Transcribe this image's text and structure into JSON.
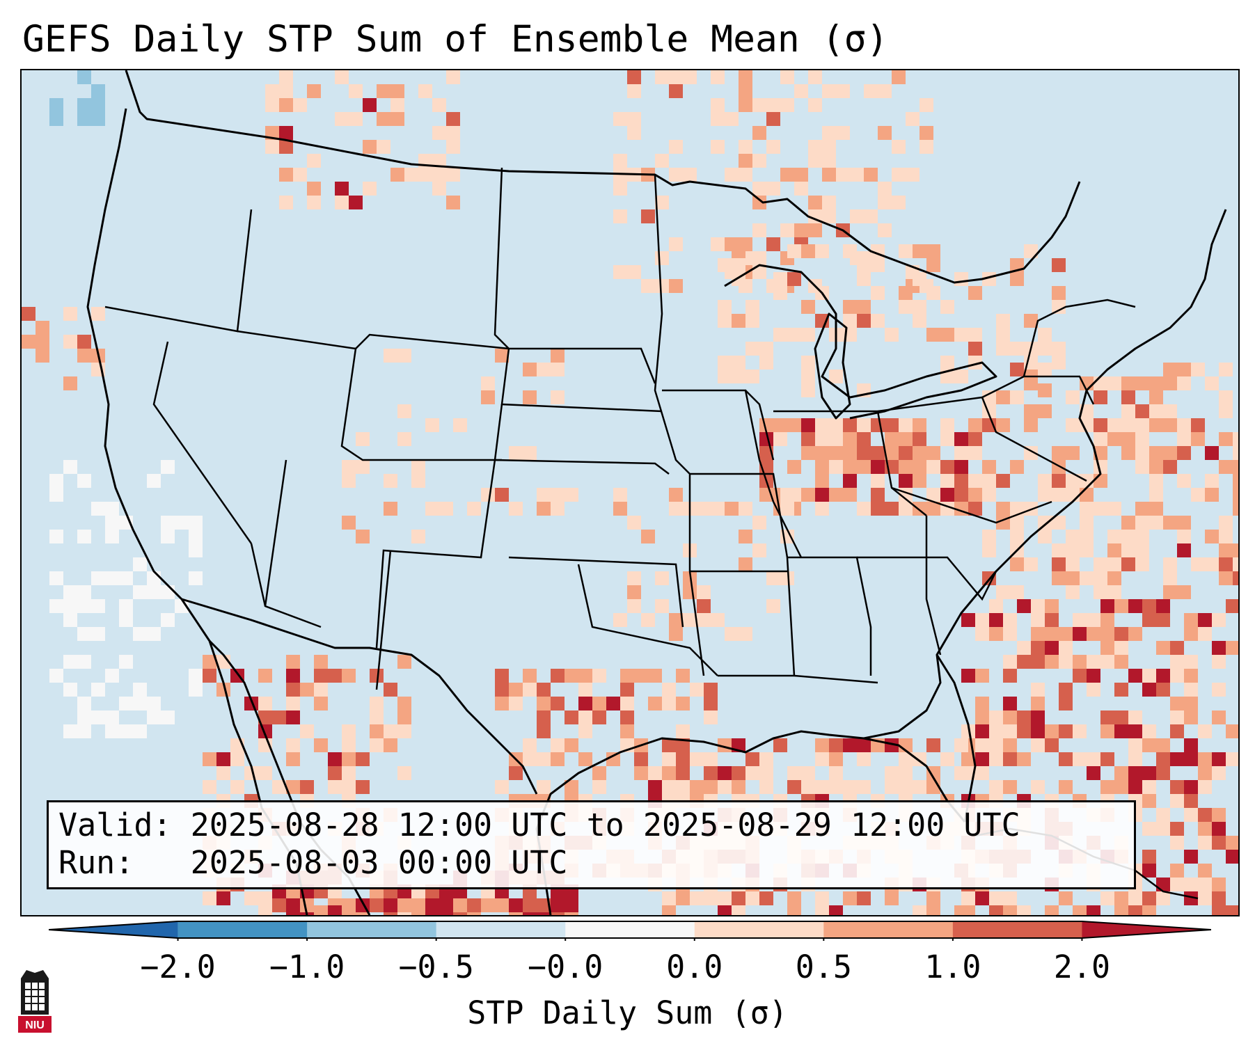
{
  "title": "GEFS Daily STP Sum of Ensemble Mean (σ)",
  "valid_line": "Valid: 2025-08-28 12:00 UTC to 2025-08-29 12:00 UTC",
  "run_line": "Run:   2025-08-03 00:00 UTC",
  "colorbar": {
    "label": "STP Daily Sum (σ)",
    "ticks": [
      "−2.0",
      "−1.0",
      "−0.5",
      "−0.0",
      "0.0",
      "0.5",
      "1.0",
      "2.0"
    ],
    "colors": [
      "#2166ac",
      "#4393c3",
      "#92c5de",
      "#d1e5f0",
      "#f7f7f7",
      "#fddbc7",
      "#f4a582",
      "#d6604d",
      "#b2182b"
    ]
  },
  "map": {
    "background_class_color": "#d1e5f0",
    "projection": "Lambert Conformal (CONUS)",
    "features": [
      "coastlines",
      "state-borders",
      "country-borders"
    ]
  },
  "logo": {
    "text": "NIU",
    "color": "#c8102e"
  }
}
